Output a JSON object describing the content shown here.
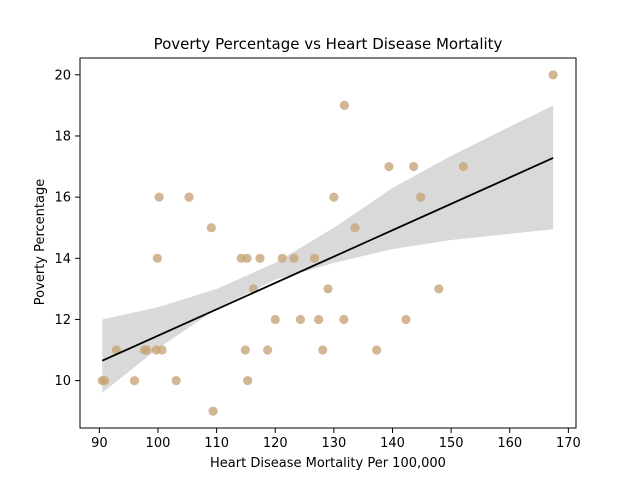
{
  "chart_data": {
    "type": "scatter",
    "title": "Poverty Percentage vs Heart Disease Mortality",
    "xlabel": "Heart Disease Mortality Per 100,000",
    "ylabel": "Poverty Percentage",
    "xlim": [
      86.7,
      171.3
    ],
    "ylim": [
      8.45,
      20.55
    ],
    "xticks": [
      90,
      100,
      110,
      120,
      130,
      140,
      150,
      160,
      170
    ],
    "yticks": [
      10,
      12,
      14,
      16,
      18,
      20
    ],
    "grid": false,
    "legend": "none",
    "colors": {
      "points": "#c8a478",
      "regression_line": "#000000",
      "confidence_band": "#d9d9d9"
    },
    "points": [
      {
        "x": 90.5,
        "y": 10
      },
      {
        "x": 90.9,
        "y": 10
      },
      {
        "x": 92.9,
        "y": 11
      },
      {
        "x": 96.0,
        "y": 10
      },
      {
        "x": 97.7,
        "y": 11
      },
      {
        "x": 98.1,
        "y": 11
      },
      {
        "x": 99.7,
        "y": 11
      },
      {
        "x": 99.9,
        "y": 14
      },
      {
        "x": 100.2,
        "y": 16
      },
      {
        "x": 100.7,
        "y": 11
      },
      {
        "x": 103.1,
        "y": 10
      },
      {
        "x": 105.3,
        "y": 16
      },
      {
        "x": 109.1,
        "y": 15
      },
      {
        "x": 109.4,
        "y": 9
      },
      {
        "x": 114.2,
        "y": 14
      },
      {
        "x": 114.9,
        "y": 11
      },
      {
        "x": 115.2,
        "y": 14
      },
      {
        "x": 115.3,
        "y": 10
      },
      {
        "x": 116.3,
        "y": 13
      },
      {
        "x": 117.4,
        "y": 14
      },
      {
        "x": 118.7,
        "y": 11
      },
      {
        "x": 120.0,
        "y": 12
      },
      {
        "x": 121.2,
        "y": 14
      },
      {
        "x": 123.2,
        "y": 14
      },
      {
        "x": 124.3,
        "y": 12
      },
      {
        "x": 126.7,
        "y": 14
      },
      {
        "x": 127.4,
        "y": 12
      },
      {
        "x": 128.1,
        "y": 11
      },
      {
        "x": 129.0,
        "y": 13
      },
      {
        "x": 130.0,
        "y": 16
      },
      {
        "x": 131.7,
        "y": 12
      },
      {
        "x": 131.8,
        "y": 19
      },
      {
        "x": 133.6,
        "y": 15
      },
      {
        "x": 137.3,
        "y": 11
      },
      {
        "x": 139.4,
        "y": 17
      },
      {
        "x": 142.3,
        "y": 12
      },
      {
        "x": 143.6,
        "y": 17
      },
      {
        "x": 144.8,
        "y": 16
      },
      {
        "x": 147.9,
        "y": 13
      },
      {
        "x": 152.1,
        "y": 17
      },
      {
        "x": 167.4,
        "y": 20
      }
    ],
    "regression": {
      "x": [
        90.5,
        167.4
      ],
      "y": [
        10.65,
        17.28
      ]
    },
    "confidence_band": [
      {
        "x": 90.5,
        "lower": 9.6,
        "upper": 12.0
      },
      {
        "x": 100,
        "lower": 11.05,
        "upper": 12.4
      },
      {
        "x": 110,
        "lower": 12.35,
        "upper": 13.0
      },
      {
        "x": 120,
        "lower": 13.3,
        "upper": 13.85
      },
      {
        "x": 130,
        "lower": 13.85,
        "upper": 15.0
      },
      {
        "x": 140,
        "lower": 14.3,
        "upper": 16.3
      },
      {
        "x": 150,
        "lower": 14.6,
        "upper": 17.35
      },
      {
        "x": 160,
        "lower": 14.8,
        "upper": 18.3
      },
      {
        "x": 167.4,
        "lower": 14.95,
        "upper": 19.0
      }
    ]
  }
}
